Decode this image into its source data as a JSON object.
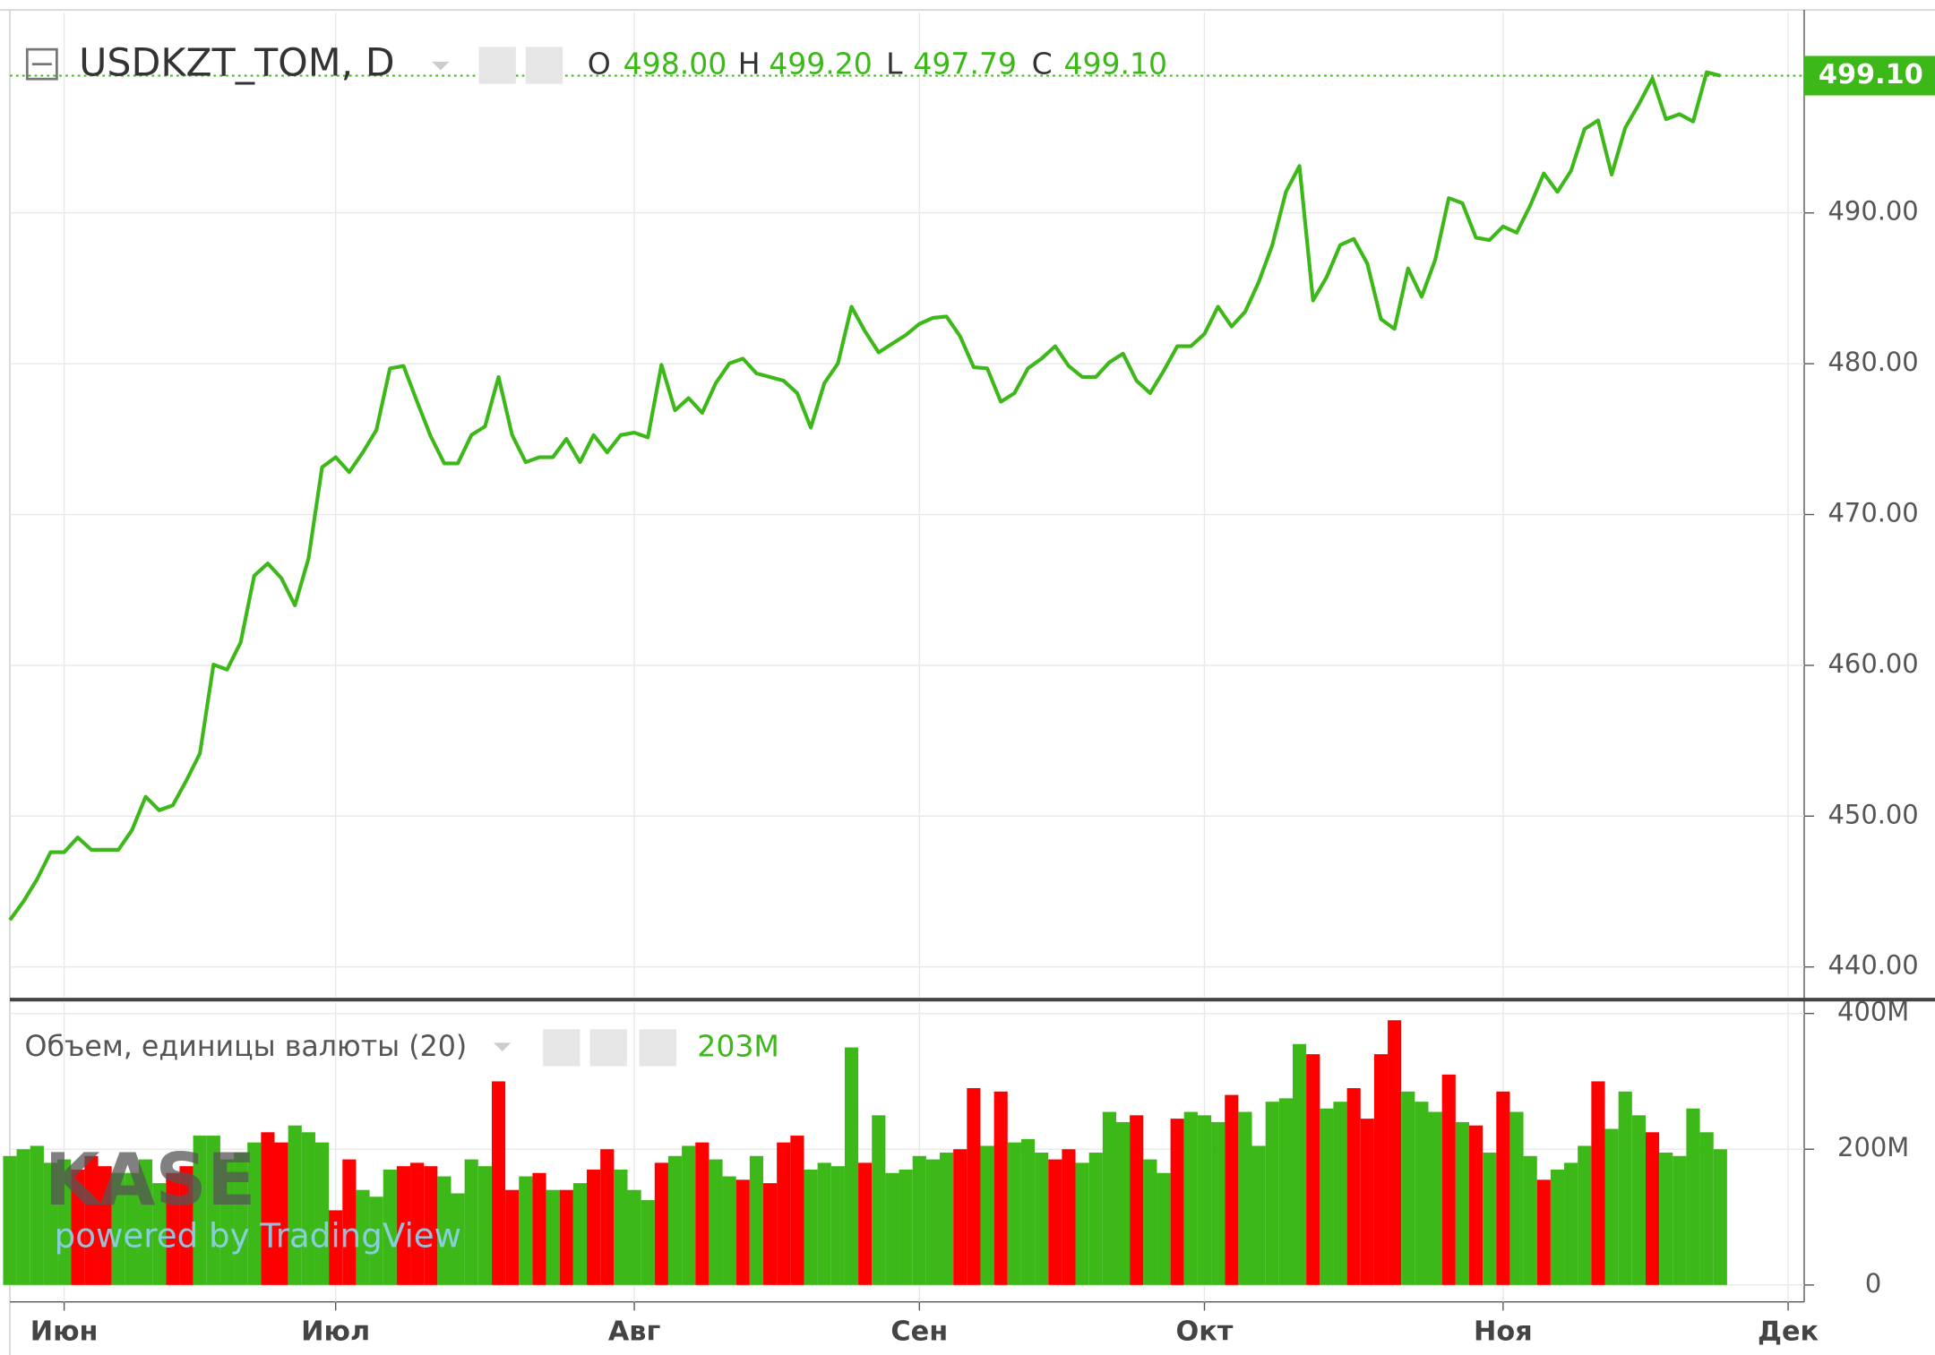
{
  "chart_data": [
    {
      "type": "line",
      "title": "USDKZT_TOM, D",
      "color": "#3cb819",
      "ohlc": [
        {
          "label": "O",
          "value": "498.00"
        },
        {
          "label": "H",
          "value": "499.20"
        },
        {
          "label": "L",
          "value": "497.79"
        },
        {
          "label": "C",
          "value": "499.10"
        }
      ],
      "categories": [
        null,
        null,
        null,
        null,
        "Июн",
        null,
        null,
        null,
        null,
        null,
        null,
        null,
        null,
        null,
        null,
        null,
        null,
        null,
        null,
        null,
        null,
        null,
        null,
        null,
        "Июл",
        null,
        null,
        null,
        null,
        null,
        null,
        null,
        null,
        null,
        null,
        null,
        null,
        null,
        null,
        null,
        null,
        null,
        null,
        null,
        null,
        null,
        "Авг",
        null,
        null,
        null,
        null,
        null,
        null,
        null,
        null,
        null,
        null,
        null,
        null,
        null,
        null,
        null,
        null,
        null,
        null,
        null,
        null,
        "Сен",
        null,
        null,
        null,
        null,
        null,
        null,
        null,
        null,
        null,
        null,
        null,
        null,
        null,
        null,
        null,
        null,
        null,
        null,
        null,
        null,
        "Окт",
        null,
        null,
        null,
        null,
        null,
        null,
        null,
        null,
        null,
        null,
        null,
        null,
        null,
        null,
        null,
        null,
        null,
        null,
        null,
        null,
        null,
        "Ноя",
        null,
        null,
        null,
        null,
        null,
        null,
        null,
        null,
        null,
        null,
        null,
        null,
        null,
        null,
        null,
        null,
        null,
        null,
        null,
        null,
        "Дек"
      ],
      "values": [
        443.11,
        444.34,
        445.81,
        447.61,
        447.61,
        448.59,
        447.77,
        447.77,
        447.77,
        449.08,
        451.29,
        450.39,
        450.72,
        452.36,
        454.16,
        460.05,
        459.72,
        461.52,
        465.94,
        466.76,
        465.78,
        463.98,
        467.09,
        473.14,
        473.8,
        472.81,
        474.12,
        475.6,
        479.69,
        479.85,
        477.48,
        475.19,
        473.39,
        473.39,
        475.27,
        475.84,
        479.12,
        475.27,
        473.47,
        473.8,
        473.8,
        475.02,
        473.47,
        475.27,
        474.12,
        475.27,
        475.43,
        475.11,
        479.93,
        476.91,
        477.72,
        476.74,
        478.71,
        480.02,
        480.34,
        479.36,
        479.12,
        478.87,
        478.05,
        475.76,
        478.71,
        480.02,
        483.78,
        482.14,
        480.75,
        481.33,
        481.9,
        482.64,
        483.04,
        483.13,
        481.82,
        479.77,
        479.69,
        477.48,
        478.05,
        479.69,
        480.34,
        481.16,
        479.85,
        479.12,
        479.12,
        480.1,
        480.67,
        478.87,
        478.05,
        479.53,
        481.16,
        481.16,
        481.98,
        483.78,
        482.47,
        483.45,
        485.42,
        487.87,
        491.39,
        493.11,
        484.19,
        485.74,
        487.87,
        488.28,
        486.64,
        482.96,
        482.31,
        486.32,
        484.44,
        486.89,
        490.98,
        490.65,
        488.36,
        488.2,
        489.1,
        488.69,
        490.49,
        492.62,
        491.39,
        492.78,
        495.56,
        496.14,
        492.54,
        495.65,
        497.2,
        498.92,
        496.22,
        496.55,
        496.06,
        499.33,
        499.1,
        null,
        null,
        null,
        null,
        null
      ],
      "ylim": [
        438,
        503.3
      ],
      "yticks": [
        {
          "value": 440,
          "label": "440.00"
        },
        {
          "value": 450,
          "label": "450.00"
        },
        {
          "value": 460,
          "label": "460.00"
        },
        {
          "value": 470,
          "label": "470.00"
        },
        {
          "value": 480,
          "label": "480.00"
        },
        {
          "value": 490,
          "label": "490.00"
        }
      ],
      "grid": true
    },
    {
      "type": "bar",
      "title": "Объем, единицы валюты (20)",
      "subtitle": "203M",
      "watermark": [
        "KASE",
        "powered by TradingView"
      ],
      "categories": [
        null,
        null,
        null,
        null,
        "Июн",
        null,
        null,
        null,
        null,
        null,
        null,
        null,
        null,
        null,
        null,
        null,
        null,
        null,
        null,
        null,
        null,
        null,
        null,
        null,
        "Июл",
        null,
        null,
        null,
        null,
        null,
        null,
        null,
        null,
        null,
        null,
        null,
        null,
        null,
        null,
        null,
        null,
        null,
        null,
        null,
        null,
        null,
        "Авг",
        null,
        null,
        null,
        null,
        null,
        null,
        null,
        null,
        null,
        null,
        null,
        null,
        null,
        null,
        null,
        null,
        null,
        null,
        null,
        null,
        "Сен",
        null,
        null,
        null,
        null,
        null,
        null,
        null,
        null,
        null,
        null,
        null,
        null,
        null,
        null,
        null,
        null,
        null,
        null,
        null,
        null,
        "Окт",
        null,
        null,
        null,
        null,
        null,
        null,
        null,
        null,
        null,
        null,
        null,
        null,
        null,
        null,
        null,
        null,
        null,
        null,
        null,
        null,
        null,
        "Ноя",
        null,
        null,
        null,
        null,
        null,
        null,
        null,
        null,
        null,
        null,
        null,
        null,
        null,
        null,
        null,
        null,
        null,
        null,
        null,
        null,
        "Дек"
      ],
      "values": [
        190,
        200,
        205,
        180,
        185,
        170,
        190,
        175,
        165,
        165,
        185,
        150,
        165,
        175,
        220,
        220,
        185,
        195,
        210,
        225,
        210,
        235,
        225,
        210,
        110,
        185,
        140,
        130,
        170,
        175,
        180,
        175,
        160,
        135,
        185,
        175,
        300,
        140,
        160,
        165,
        140,
        140,
        150,
        170,
        200,
        170,
        140,
        125,
        180,
        190,
        205,
        210,
        185,
        160,
        155,
        190,
        150,
        210,
        220,
        170,
        180,
        175,
        350,
        180,
        250,
        165,
        170,
        190,
        185,
        195,
        200,
        290,
        205,
        285,
        210,
        215,
        195,
        185,
        200,
        180,
        195,
        255,
        240,
        250,
        185,
        165,
        245,
        255,
        250,
        240,
        280,
        255,
        205,
        270,
        275,
        355,
        340,
        260,
        270,
        290,
        245,
        340,
        390,
        285,
        270,
        255,
        310,
        240,
        235,
        195,
        285,
        255,
        190,
        155,
        170,
        180,
        205,
        300,
        230,
        285,
        250,
        225,
        195,
        190,
        260,
        225,
        200,
        null,
        null,
        null,
        null,
        null
      ],
      "colors": [
        "#3cb819",
        "#3cb819",
        "#3cb819",
        "#3cb819",
        "#3cb819",
        "#ff0000",
        "#ff0000",
        "#ff0000",
        "#3cb819",
        "#3cb819",
        "#3cb819",
        "#3cb819",
        "#ff0000",
        "#ff0000",
        "#3cb819",
        "#3cb819",
        "#3cb819",
        "#3cb819",
        "#3cb819",
        "#ff0000",
        "#ff0000",
        "#3cb819",
        "#3cb819",
        "#3cb819",
        "#ff0000",
        "#ff0000",
        "#3cb819",
        "#3cb819",
        "#3cb819",
        "#ff0000",
        "#ff0000",
        "#ff0000",
        "#3cb819",
        "#3cb819",
        "#3cb819",
        "#3cb819",
        "#ff0000",
        "#ff0000",
        "#3cb819",
        "#ff0000",
        "#3cb819",
        "#ff0000",
        "#3cb819",
        "#ff0000",
        "#ff0000",
        "#3cb819",
        "#3cb819",
        "#3cb819",
        "#ff0000",
        "#3cb819",
        "#3cb819",
        "#ff0000",
        "#3cb819",
        "#3cb819",
        "#ff0000",
        "#3cb819",
        "#ff0000",
        "#ff0000",
        "#ff0000",
        "#3cb819",
        "#3cb819",
        "#3cb819",
        "#3cb819",
        "#ff0000",
        "#3cb819",
        "#3cb819",
        "#3cb819",
        "#3cb819",
        "#3cb819",
        "#3cb819",
        "#ff0000",
        "#ff0000",
        "#3cb819",
        "#ff0000",
        "#3cb819",
        "#3cb819",
        "#3cb819",
        "#ff0000",
        "#ff0000",
        "#3cb819",
        "#3cb819",
        "#3cb819",
        "#3cb819",
        "#ff0000",
        "#3cb819",
        "#3cb819",
        "#ff0000",
        "#3cb819",
        "#3cb819",
        "#3cb819",
        "#ff0000",
        "#3cb819",
        "#3cb819",
        "#3cb819",
        "#3cb819",
        "#3cb819",
        "#ff0000",
        "#3cb819",
        "#3cb819",
        "#ff0000",
        "#ff0000",
        "#ff0000",
        "#ff0000",
        "#3cb819",
        "#3cb819",
        "#3cb819",
        "#ff0000",
        "#3cb819",
        "#ff0000",
        "#3cb819",
        "#ff0000",
        "#3cb819",
        "#3cb819",
        "#ff0000",
        "#3cb819",
        "#3cb819",
        "#3cb819",
        "#ff0000",
        "#3cb819",
        "#3cb819",
        "#3cb819",
        "#ff0000",
        "#3cb819",
        "#3cb819",
        "#3cb819",
        "#3cb819",
        "#3cb819",
        null,
        null,
        null,
        null,
        null
      ],
      "ylim": [
        -25,
        415
      ],
      "yticks": [
        0,
        {
          "value": 200,
          "label": "200M"
        },
        {
          "value": 400,
          "label": "400M"
        }
      ],
      "grid": true
    }
  ]
}
